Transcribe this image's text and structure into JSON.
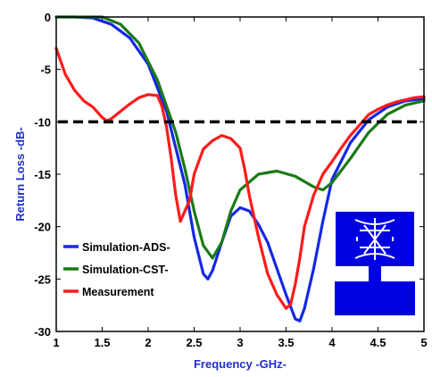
{
  "chart_data": {
    "type": "line",
    "xlabel": "Frequency -GHz-",
    "ylabel": "Return Loss -dB-",
    "xlim": [
      1,
      5
    ],
    "ylim": [
      -30,
      0
    ],
    "x_ticks": [
      "1",
      "1.5",
      "2",
      "2.5",
      "3",
      "3.5",
      "4",
      "4.5",
      "5"
    ],
    "y_ticks": [
      "0",
      "-5",
      "-10",
      "-15",
      "-20",
      "-25",
      "-30"
    ],
    "grid": false,
    "legend_position": "bottom-left",
    "reference_line": {
      "y": -10,
      "style": "dashed",
      "color": "#000000"
    },
    "series": [
      {
        "name": "Simulation-ADS-",
        "color": "#1428e6",
        "points": [
          [
            1.0,
            0.0
          ],
          [
            1.2,
            0.0
          ],
          [
            1.4,
            -0.1
          ],
          [
            1.6,
            -0.7
          ],
          [
            1.8,
            -2.0
          ],
          [
            2.0,
            -4.5
          ],
          [
            2.2,
            -9.0
          ],
          [
            2.4,
            -16.0
          ],
          [
            2.5,
            -21.0
          ],
          [
            2.6,
            -24.5
          ],
          [
            2.65,
            -25.0
          ],
          [
            2.7,
            -24.2
          ],
          [
            2.8,
            -21.5
          ],
          [
            2.9,
            -19.0
          ],
          [
            3.0,
            -18.2
          ],
          [
            3.1,
            -18.5
          ],
          [
            3.2,
            -19.8
          ],
          [
            3.3,
            -21.5
          ],
          [
            3.4,
            -24.0
          ],
          [
            3.5,
            -26.5
          ],
          [
            3.6,
            -28.8
          ],
          [
            3.65,
            -29.0
          ],
          [
            3.7,
            -27.8
          ],
          [
            3.8,
            -24.0
          ],
          [
            3.9,
            -19.5
          ],
          [
            4.0,
            -15.5
          ],
          [
            4.2,
            -12.0
          ],
          [
            4.4,
            -9.8
          ],
          [
            4.6,
            -8.6
          ],
          [
            4.8,
            -8.0
          ],
          [
            5.0,
            -7.8
          ]
        ]
      },
      {
        "name": "Simulation-CST-",
        "color": "#1a7a16",
        "points": [
          [
            1.0,
            0.0
          ],
          [
            1.5,
            0.0
          ],
          [
            1.7,
            -0.7
          ],
          [
            1.9,
            -2.5
          ],
          [
            2.1,
            -6.0
          ],
          [
            2.3,
            -11.0
          ],
          [
            2.4,
            -14.5
          ],
          [
            2.5,
            -18.5
          ],
          [
            2.6,
            -21.8
          ],
          [
            2.7,
            -23.0
          ],
          [
            2.8,
            -21.5
          ],
          [
            2.9,
            -18.5
          ],
          [
            3.0,
            -16.5
          ],
          [
            3.2,
            -15.0
          ],
          [
            3.4,
            -14.7
          ],
          [
            3.6,
            -15.2
          ],
          [
            3.8,
            -16.2
          ],
          [
            3.9,
            -16.5
          ],
          [
            4.0,
            -15.8
          ],
          [
            4.2,
            -13.5
          ],
          [
            4.4,
            -11.0
          ],
          [
            4.6,
            -9.3
          ],
          [
            4.8,
            -8.4
          ],
          [
            5.0,
            -8.0
          ]
        ]
      },
      {
        "name": "Measurement",
        "color": "#ff1a1a",
        "points": [
          [
            1.0,
            -3.0
          ],
          [
            1.1,
            -5.5
          ],
          [
            1.2,
            -7.0
          ],
          [
            1.3,
            -8.0
          ],
          [
            1.4,
            -8.6
          ],
          [
            1.5,
            -9.6
          ],
          [
            1.55,
            -9.9
          ],
          [
            1.6,
            -9.7
          ],
          [
            1.7,
            -9.0
          ],
          [
            1.8,
            -8.3
          ],
          [
            1.9,
            -7.7
          ],
          [
            2.0,
            -7.4
          ],
          [
            2.1,
            -7.5
          ],
          [
            2.15,
            -8.5
          ],
          [
            2.2,
            -10.5
          ],
          [
            2.25,
            -13.5
          ],
          [
            2.3,
            -17.0
          ],
          [
            2.35,
            -19.5
          ],
          [
            2.4,
            -18.5
          ],
          [
            2.45,
            -17.5
          ],
          [
            2.5,
            -15.0
          ],
          [
            2.6,
            -12.6
          ],
          [
            2.7,
            -11.8
          ],
          [
            2.8,
            -11.3
          ],
          [
            2.9,
            -11.6
          ],
          [
            3.0,
            -12.5
          ],
          [
            3.05,
            -14.5
          ],
          [
            3.1,
            -17.0
          ],
          [
            3.2,
            -21.0
          ],
          [
            3.3,
            -24.5
          ],
          [
            3.4,
            -26.5
          ],
          [
            3.5,
            -27.8
          ],
          [
            3.55,
            -27.4
          ],
          [
            3.6,
            -25.5
          ],
          [
            3.65,
            -23.0
          ],
          [
            3.7,
            -20.0
          ],
          [
            3.8,
            -17.0
          ],
          [
            3.9,
            -15.0
          ],
          [
            4.0,
            -13.8
          ],
          [
            4.1,
            -12.5
          ],
          [
            4.2,
            -11.3
          ],
          [
            4.3,
            -10.3
          ],
          [
            4.4,
            -9.3
          ],
          [
            4.5,
            -8.8
          ],
          [
            4.6,
            -8.4
          ],
          [
            4.7,
            -8.1
          ],
          [
            4.8,
            -7.9
          ],
          [
            4.9,
            -7.7
          ],
          [
            5.0,
            -7.6
          ]
        ]
      }
    ]
  }
}
